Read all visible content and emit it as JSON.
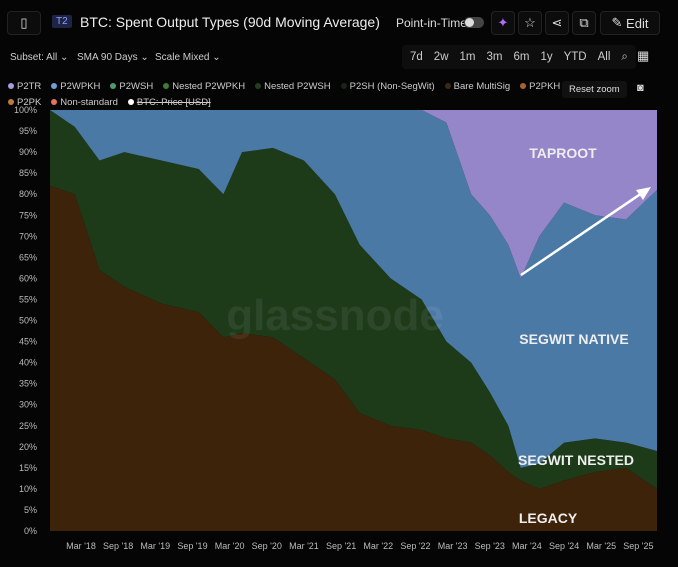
{
  "header": {
    "badge": "T2",
    "title": "BTC: Spent Output Types (90d Moving Average)",
    "point_in_time": "Point-in-Time",
    "edit": "Edit"
  },
  "toolbar": {
    "subset": "Subset: All",
    "sma": "SMA 90 Days",
    "scale": "Scale Mixed",
    "ranges": [
      "7d",
      "2w",
      "1m",
      "3m",
      "6m",
      "1y",
      "YTD",
      "All"
    ],
    "reset_zoom": "Reset zoom"
  },
  "legend": [
    {
      "label": "P2TR",
      "color": "#a99be0"
    },
    {
      "label": "P2WPKH",
      "color": "#6f9fd8"
    },
    {
      "label": "P2WSH",
      "color": "#4e9a6a"
    },
    {
      "label": "Nested P2WPKH",
      "color": "#3f7a3a"
    },
    {
      "label": "Nested P2WSH",
      "color": "#243f20"
    },
    {
      "label": "P2SH (Non-SegWit)",
      "color": "#1a2418"
    },
    {
      "label": "Bare MultiSig",
      "color": "#3a2a12"
    },
    {
      "label": "P2PKH",
      "color": "#a9632a"
    },
    {
      "label": "P2PK",
      "color": "#c07a3a"
    },
    {
      "label": "Non-standard",
      "color": "#e8735a"
    },
    {
      "label": "BTC: Price [USD]",
      "color": "#ffffff",
      "disabled": true
    }
  ],
  "chart_data": {
    "type": "area",
    "stacked": true,
    "watermark": "glassnode",
    "x": [
      "2017-10",
      "2018-02",
      "2018-06",
      "2018-10",
      "2019-04",
      "2019-10",
      "2020-02",
      "2020-05",
      "2020-10",
      "2021-03",
      "2021-08",
      "2021-12",
      "2022-05",
      "2022-10",
      "2023-02",
      "2023-06",
      "2023-09",
      "2023-12",
      "2024-02",
      "2024-05",
      "2024-09",
      "2025-02",
      "2025-07",
      "2025-12"
    ],
    "xticks": [
      "Mar '18",
      "Sep '18",
      "Mar '19",
      "Sep '19",
      "Mar '20",
      "Sep '20",
      "Mar '21",
      "Sep '21",
      "Mar '22",
      "Sep '22",
      "Mar '23",
      "Sep '23",
      "Mar '24",
      "Sep '24",
      "Mar '25",
      "Sep '25"
    ],
    "yticks": [
      "0%",
      "5%",
      "10%",
      "15%",
      "20%",
      "25%",
      "30%",
      "35%",
      "40%",
      "45%",
      "50%",
      "55%",
      "60%",
      "65%",
      "70%",
      "75%",
      "80%",
      "85%",
      "90%",
      "95%",
      "100%"
    ],
    "ylim": [
      0,
      100
    ],
    "series": [
      {
        "name": "LEGACY",
        "color": "#3d2309",
        "values": [
          82,
          80,
          62,
          58,
          54,
          52,
          46,
          47,
          46,
          41,
          36,
          28,
          25,
          24,
          22,
          21,
          18,
          14,
          12,
          10,
          12,
          14,
          15,
          10
        ]
      },
      {
        "name": "SEGWIT NESTED",
        "color": "#1d3a19",
        "values": [
          18,
          16,
          26,
          32,
          34,
          34,
          34,
          43,
          45,
          47,
          44,
          40,
          35,
          31,
          23,
          19,
          15,
          11,
          3,
          6,
          9,
          8,
          6,
          9
        ]
      },
      {
        "name": "SEGWIT NATIVE",
        "color": "#4b79a6",
        "values": [
          0,
          4,
          12,
          10,
          12,
          14,
          20,
          10,
          9,
          12,
          20,
          32,
          40,
          45,
          52,
          40,
          42,
          43,
          45,
          54,
          57,
          53,
          53,
          62
        ]
      },
      {
        "name": "TAPROOT",
        "color": "#9585c9",
        "values": [
          0,
          0,
          0,
          0,
          0,
          0,
          0,
          0,
          0,
          0,
          0,
          0,
          0,
          0,
          3,
          20,
          25,
          32,
          40,
          30,
          22,
          25,
          26,
          19
        ]
      }
    ],
    "annotations": [
      "TAPROOT",
      "SEGWIT NATIVE",
      "SEGWIT NESTED",
      "LEGACY"
    ]
  }
}
